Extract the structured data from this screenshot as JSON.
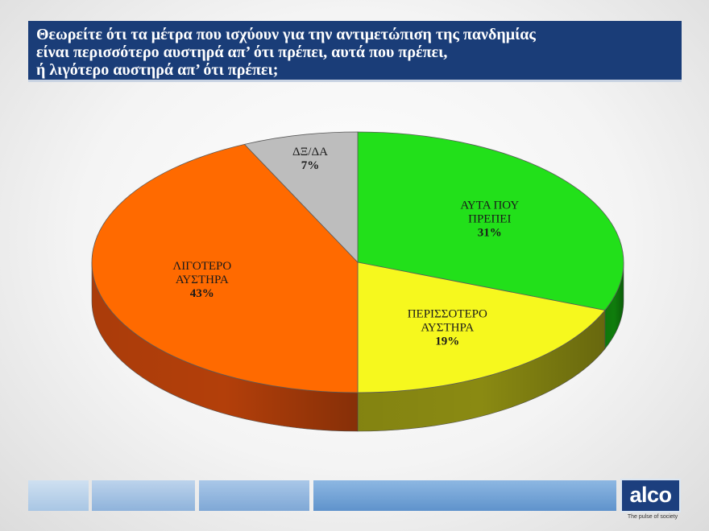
{
  "title": {
    "lines": [
      "Θεωρείτε ότι τα μέτρα που ισχύουν για την αντιμετώπιση της πανδημίας",
      "είναι περισσότερο αυστηρά απ’ ότι πρέπει, αυτά που πρέπει,",
      "ή λιγότερο αυστηρά απ’ ότι πρέπει;"
    ]
  },
  "chart_data": {
    "type": "pie",
    "title": "Θεωρείτε ότι τα μέτρα που ισχύουν για την αντιμετώπιση της πανδημίας είναι περισσότερο αυστηρά απ’ ότι πρέπει, αυτά που πρέπει, ή λιγότερο αυστηρά απ’ ότι πρέπει;",
    "slices": [
      {
        "label_lines": [
          "ΑΥΤΑ ΠΟΥ",
          "ΠΡΕΠΕΙ"
        ],
        "value": 31,
        "value_label": "31%",
        "color": "#22e01a",
        "side_color": "#0f7d0c"
      },
      {
        "label_lines": [
          "ΠΕΡΙΣΣΟΤΕΡΟ",
          "ΑΥΣΤΗΡΑ"
        ],
        "value": 19,
        "value_label": "19%",
        "color": "#f6f81e",
        "side_color": "#8a8a12"
      },
      {
        "label_lines": [
          "ΛΙΓΟΤΕΡΟ",
          "ΑΥΣΤΗΡΑ"
        ],
        "value": 43,
        "value_label": "43%",
        "color": "#ff6a00",
        "side_color": "#b33f0a"
      },
      {
        "label_lines": [
          "ΔΞ/ΔΑ"
        ],
        "value": 7,
        "value_label": "7%",
        "color": "#bdbdbd",
        "side_color": "#7d7d7d"
      }
    ],
    "start": "12 o'clock",
    "direction": "clockwise",
    "style": "3d"
  },
  "footer": {
    "logo_text": "alco",
    "tagline": "The pulse of society"
  }
}
